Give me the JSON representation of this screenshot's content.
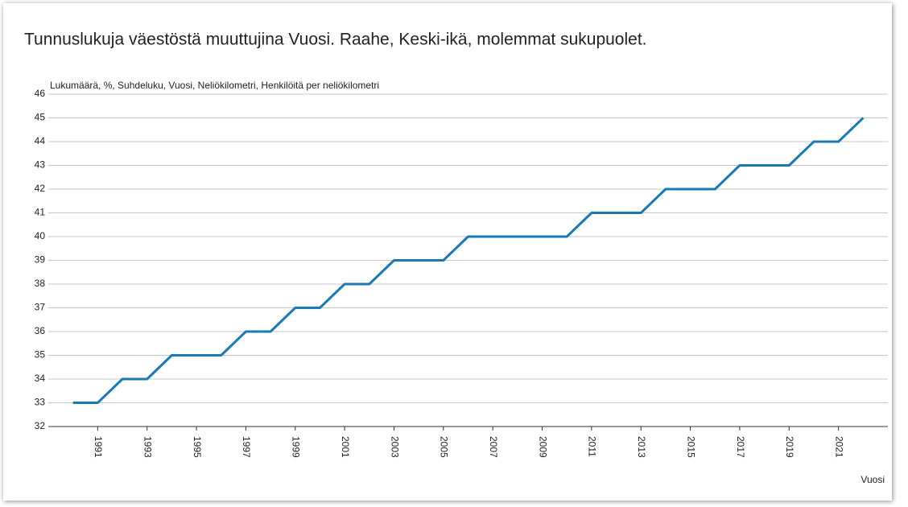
{
  "chart_data": {
    "type": "line",
    "title": "Tunnuslukuja väestöstä muuttujina Vuosi. Raahe, Keski-ikä, molemmat sukupuolet.",
    "y_label": "Lukumäärä, %, Suhdeluku, Vuosi, Neliökilometri, Henkilöitä per neliökilometri",
    "x_label": "Vuosi",
    "x": [
      1990,
      1991,
      1992,
      1993,
      1994,
      1995,
      1996,
      1997,
      1998,
      1999,
      2000,
      2001,
      2002,
      2003,
      2004,
      2005,
      2006,
      2007,
      2008,
      2009,
      2010,
      2011,
      2012,
      2013,
      2014,
      2015,
      2016,
      2017,
      2018,
      2019,
      2020,
      2021,
      2022
    ],
    "series": [
      {
        "name": "Keski-ikä",
        "color": "#1a7ab8",
        "values": [
          33,
          33,
          34,
          34,
          35,
          35,
          35,
          36,
          36,
          37,
          37,
          38,
          38,
          39,
          39,
          39,
          40,
          40,
          40,
          40,
          40,
          41,
          41,
          41,
          42,
          42,
          42,
          43,
          43,
          43,
          44,
          44,
          45
        ]
      }
    ],
    "xlim": [
      1989,
      2023
    ],
    "xticks": [
      1991,
      1993,
      1995,
      1997,
      1999,
      2001,
      2003,
      2005,
      2007,
      2009,
      2011,
      2013,
      2015,
      2017,
      2019,
      2021
    ],
    "ylim": [
      32,
      46
    ],
    "yticks": [
      32,
      33,
      34,
      35,
      36,
      37,
      38,
      39,
      40,
      41,
      42,
      43,
      44,
      45,
      46
    ],
    "grid": true
  }
}
